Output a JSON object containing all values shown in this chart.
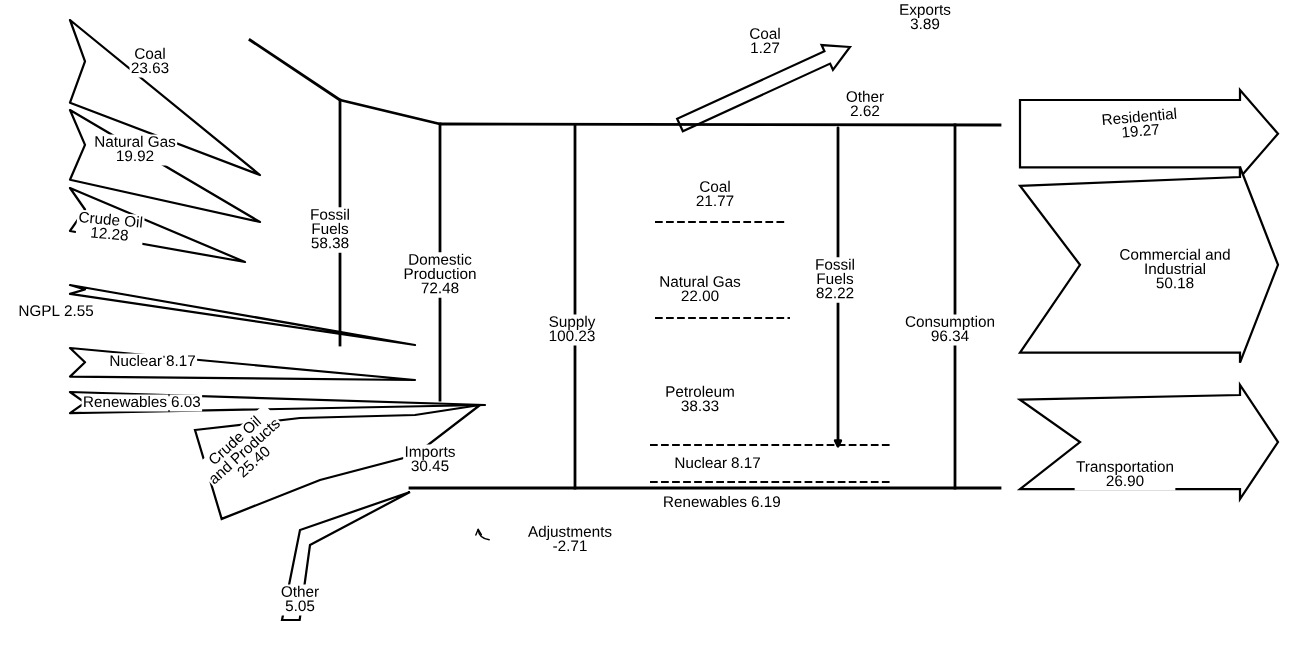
{
  "chart_data": {
    "type": "other",
    "categories": [
      "Coal",
      "Natural Gas",
      "Crude Oil",
      "NGPL",
      "Nuclear",
      "Renewables",
      "Fossil Fuels",
      "Domestic Production",
      "Crude Oil and Products",
      "Other",
      "Imports",
      "Adjustments",
      "Supply",
      "Coal",
      "Other",
      "Exports",
      "Coal",
      "Natural Gas",
      "Petroleum",
      "Nuclear",
      "Renewables",
      "Fossil Fuels",
      "Consumption",
      "Residential",
      "Commercial and Industrial",
      "Transportation"
    ],
    "values": [
      23.63,
      19.92,
      12.28,
      2.55,
      8.17,
      6.03,
      58.38,
      72.48,
      25.4,
      5.05,
      30.45,
      -2.71,
      100.23,
      1.27,
      2.62,
      3.89,
      21.77,
      22.0,
      38.33,
      8.17,
      6.19,
      82.22,
      96.34,
      19.27,
      50.18,
      26.9
    ],
    "value_labels": [
      "23.63",
      "19.92",
      "12.28",
      "2.55",
      "8.17",
      "6.03",
      "58.38",
      "72.48",
      "25.40",
      "5.05",
      "30.45",
      "-2.71",
      "100.23",
      "1.27",
      "2.62",
      "3.89",
      "21.77",
      "22.00",
      "38.33",
      "8.17",
      "6.19",
      "82.22",
      "96.34",
      "19.27",
      "50.18",
      "26.90"
    ]
  }
}
